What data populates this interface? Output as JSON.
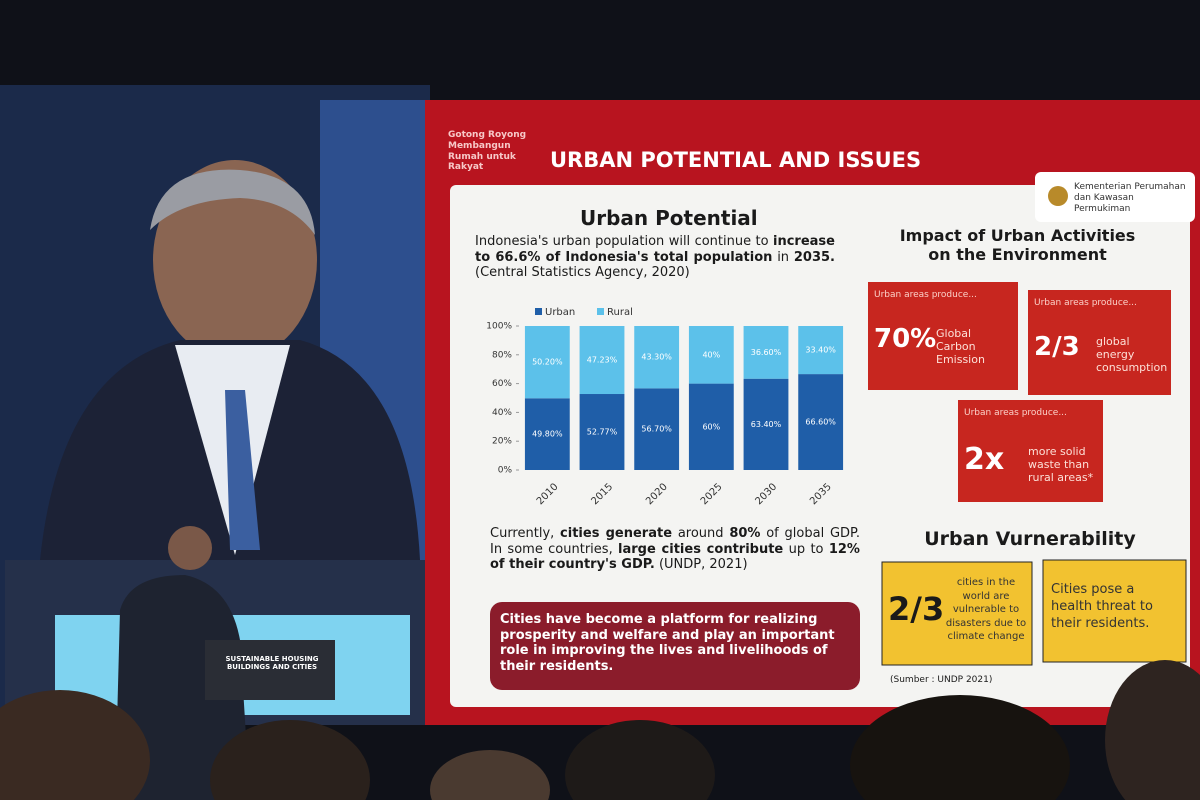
{
  "slide": {
    "tagline": "Gotong Royong Membangun Rumah untuk Rakyat",
    "title": "URBAN POTENTIAL AND ISSUES",
    "ministry": "Kementerian Perumahan dan Kawasan Permukiman",
    "potential_title": "Urban Potential",
    "intro": [
      {
        "text": "Indonesia's urban population will continue to ",
        "bold": false
      },
      {
        "text": "increase to 66.6% of Indonesia's total population",
        "bold": true
      },
      {
        "text": " in ",
        "bold": false
      },
      {
        "text": "2035.",
        "bold": true
      },
      {
        "text": " (Central Statistics Agency, 2020)",
        "bold": false
      }
    ],
    "gdp": [
      {
        "text": "Currently, ",
        "bold": false
      },
      {
        "text": "cities generate",
        "bold": true
      },
      {
        "text": " around ",
        "bold": false
      },
      {
        "text": "80%",
        "bold": true
      },
      {
        "text": " of global GDP. In some countries, ",
        "bold": false
      },
      {
        "text": "large cities contribute",
        "bold": true
      },
      {
        "text": " up to ",
        "bold": false
      },
      {
        "text": "12% of their country's GDP.",
        "bold": true
      },
      {
        "text": " (UNDP, 2021)",
        "bold": false
      }
    ],
    "platform": "Cities have become a platform for realizing prosperity and welfare and play an important role in improving the lives and livelihoods of their residents.",
    "impact_title": "Impact of Urban Activities on the Environment",
    "impact_cards": [
      {
        "lead": "Urban areas produce...",
        "big": "70%",
        "text": "Global Carbon Emission"
      },
      {
        "lead": "Urban areas produce...",
        "big": "2/3",
        "text": "global energy consumption"
      },
      {
        "lead": "Urban areas produce...",
        "big": "2x",
        "text": "more solid waste than rural areas*"
      }
    ],
    "vulnerability_title": "Urban Vurnerability",
    "vulnerability_cards": [
      {
        "big": "2/3",
        "text": "cities in the world are vulnerable to disasters due to climate change"
      },
      {
        "text": "Cities pose a health threat to their residents."
      }
    ],
    "source": "(Sumber : UNDP 2021)"
  },
  "podium": "SUSTAINABLE HOUSING BUILDINGS AND CITIES",
  "chart_data": {
    "type": "bar",
    "stacked": true,
    "categories": [
      "2010",
      "2015",
      "2020",
      "2025",
      "2030",
      "2035"
    ],
    "series": [
      {
        "name": "Urban",
        "color": "#1f5ea8",
        "values": [
          49.8,
          52.77,
          56.7,
          60,
          63.4,
          66.6
        ],
        "value_labels": [
          "49.80%",
          "52.77%",
          "56.70%",
          "60%",
          "63.40%",
          "66.60%"
        ]
      },
      {
        "name": "Rural",
        "color": "#5cc1ea",
        "values": [
          50.2,
          47.23,
          43.3,
          40,
          36.6,
          33.4
        ],
        "value_labels": [
          "50.20%",
          "47.23%",
          "43.30%",
          "40%",
          "36.60%",
          "33.40%"
        ]
      }
    ],
    "ylim": [
      0,
      100
    ],
    "yticks": [
      {
        "value": 0,
        "label": "0%"
      },
      {
        "value": 20,
        "label": "20%"
      },
      {
        "value": 40,
        "label": "40%"
      },
      {
        "value": 60,
        "label": "60%"
      },
      {
        "value": 80,
        "label": "80%"
      },
      {
        "value": 100,
        "label": "100%"
      }
    ]
  }
}
